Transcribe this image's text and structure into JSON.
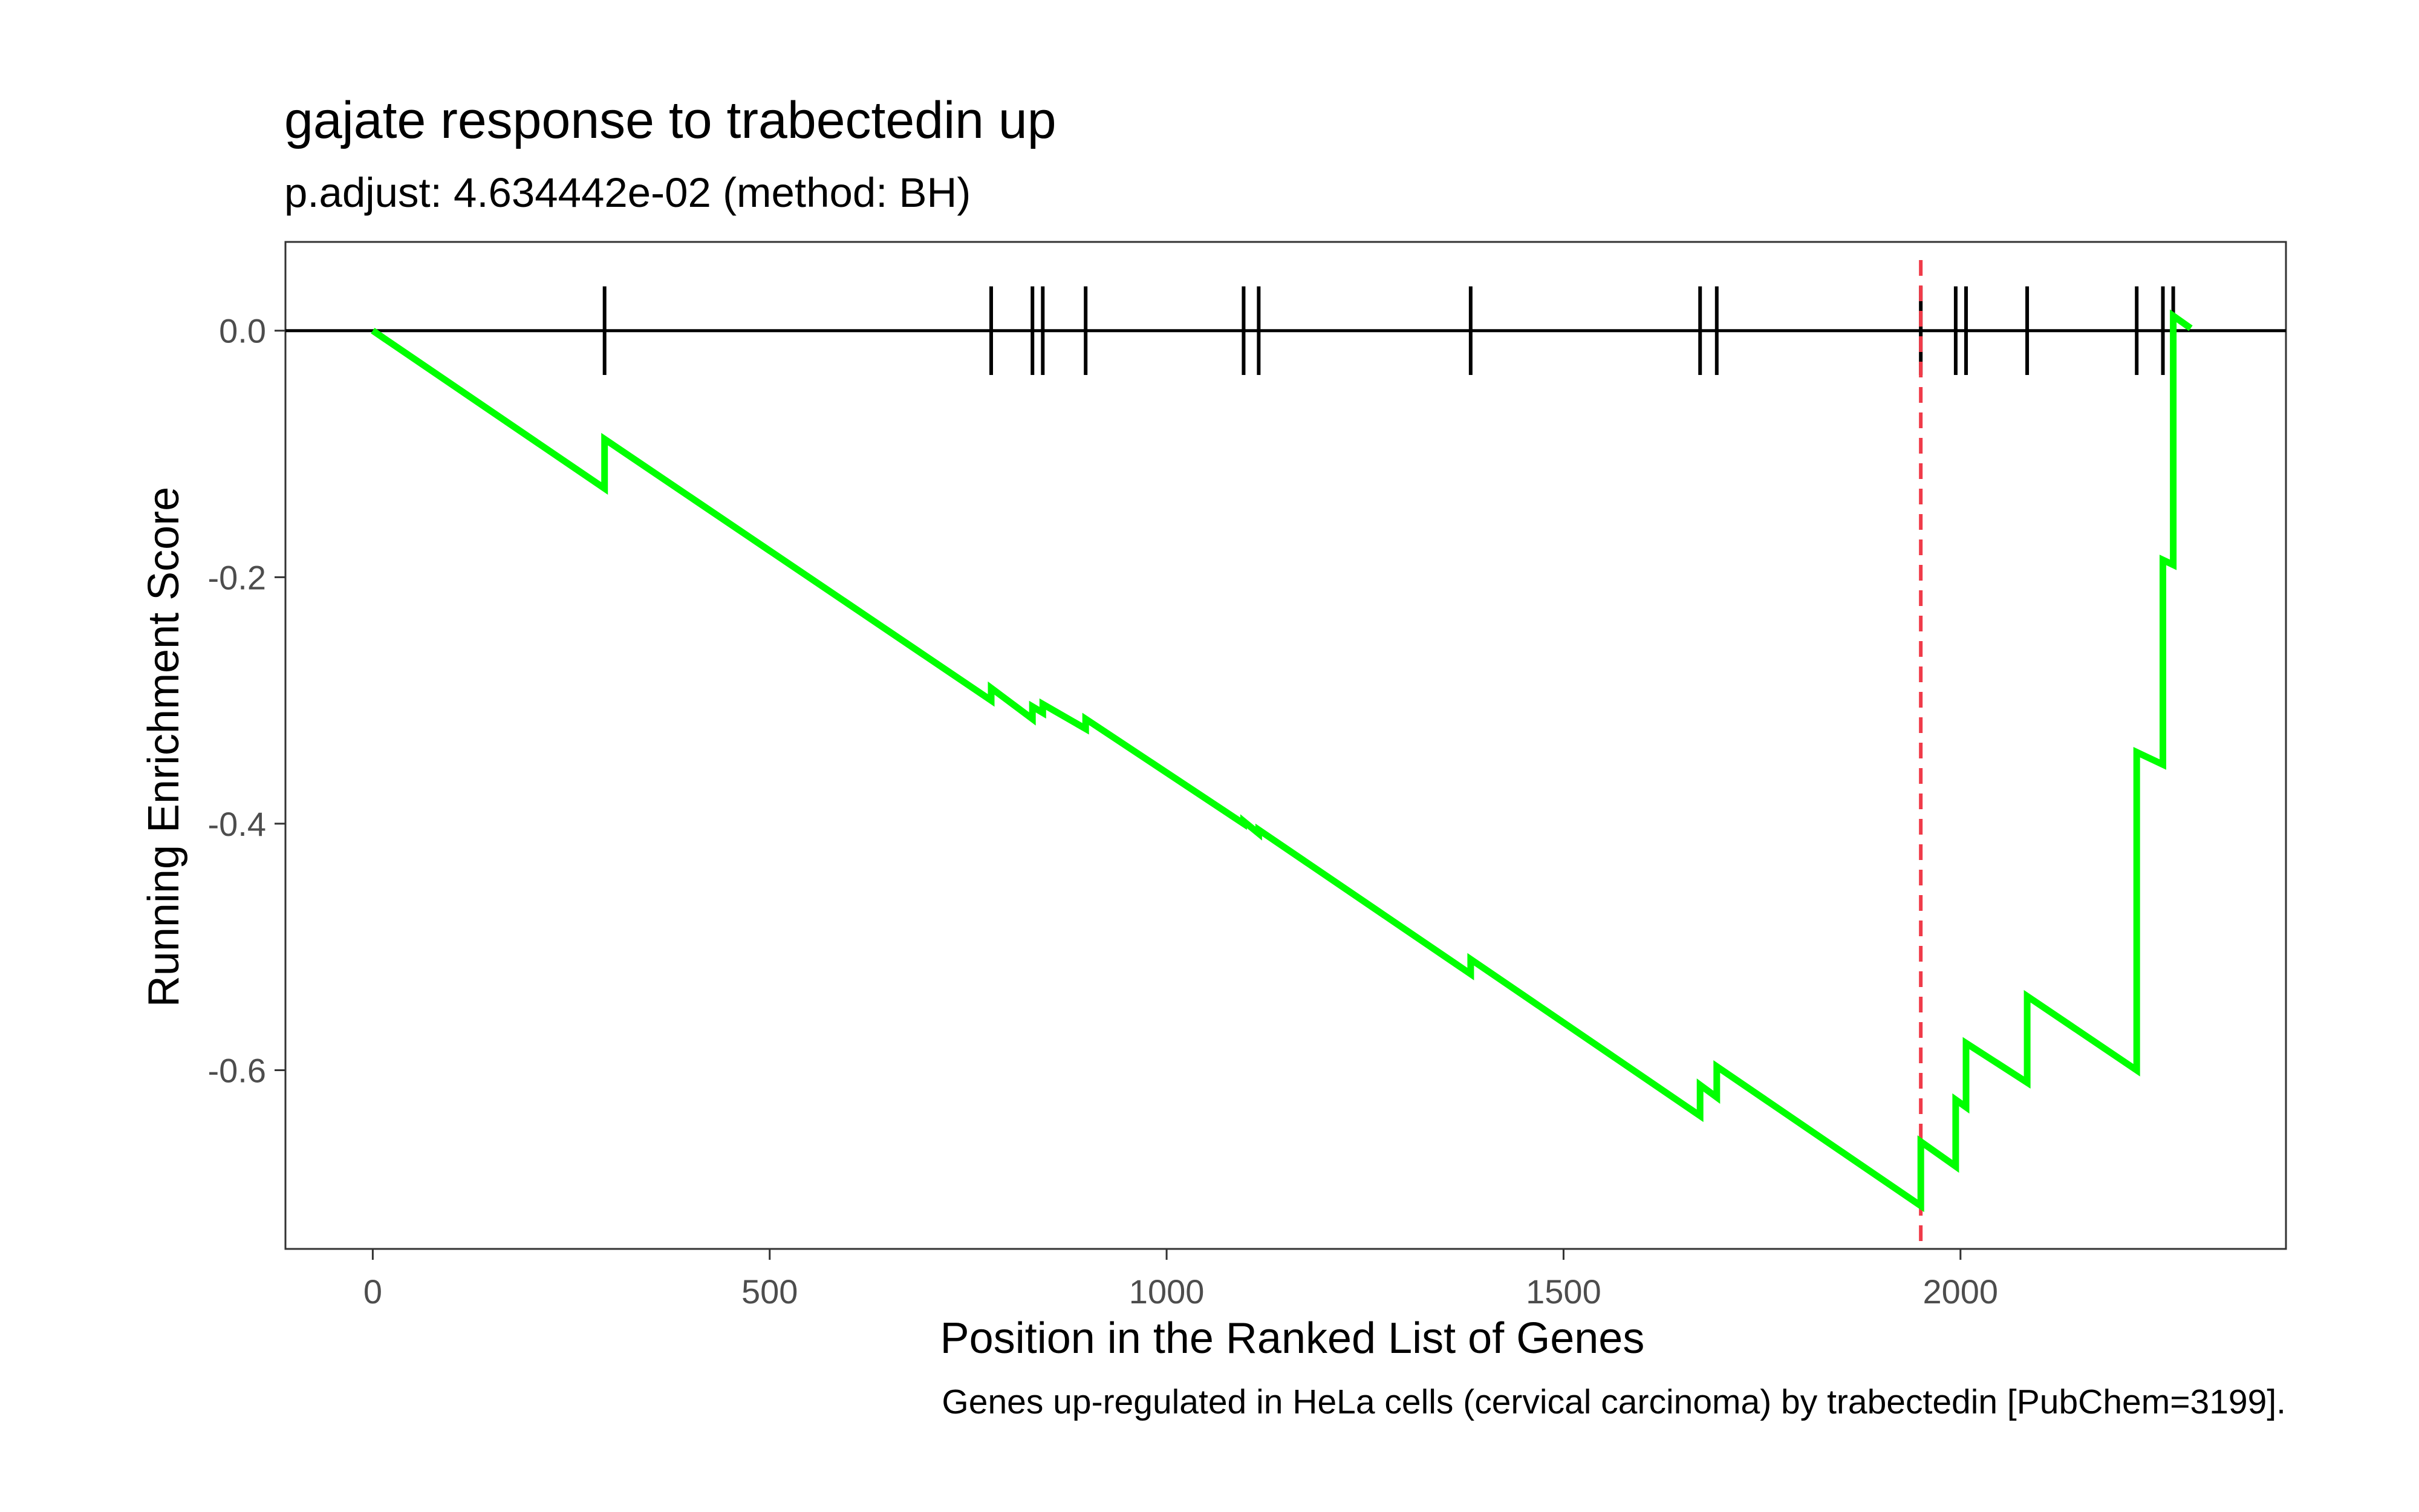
{
  "chart_data": {
    "type": "line",
    "title": "gajate response to trabectedin up",
    "subtitle": "p.adjust: 4.634442e-02 (method: BH)",
    "xlabel": "Position in the Ranked List of Genes",
    "ylabel": "Running Enrichment Score",
    "caption": "Genes up-regulated in HeLa cells (cervical carcinoma) by trabectedin [PubChem=3199].",
    "xlim": [
      -110,
      2410
    ],
    "ylim": [
      -0.745,
      0.072
    ],
    "x_ticks": [
      0,
      500,
      1000,
      1500,
      2000
    ],
    "x_tick_labels": [
      "0",
      "500",
      "1000",
      "1500",
      "2000"
    ],
    "y_ticks": [
      0.0,
      -0.2,
      -0.4,
      -0.6
    ],
    "y_tick_labels": [
      "0.0",
      "-0.2",
      "-0.4",
      "-0.6"
    ],
    "grid": false,
    "legend": "none",
    "reference_line_y": 0,
    "max_deviation_x": 1950,
    "series": [
      {
        "color": "#00ff00",
        "x": [
          0,
          292,
          292,
          779,
          779,
          831,
          831,
          844,
          844,
          898,
          898,
          1097,
          1097,
          1116,
          1116,
          1383,
          1383,
          1672,
          1672,
          1693,
          1693,
          1950,
          1950,
          1994,
          1994,
          2007,
          2007,
          2084,
          2084,
          2222,
          2222,
          2255,
          2255,
          2268,
          2268,
          2290
        ],
        "y": [
          0.0,
          -0.128,
          -0.088,
          -0.3,
          -0.29,
          -0.315,
          -0.305,
          -0.31,
          -0.303,
          -0.323,
          -0.315,
          -0.4,
          -0.398,
          -0.408,
          -0.405,
          -0.522,
          -0.51,
          -0.637,
          -0.612,
          -0.622,
          -0.597,
          -0.71,
          -0.658,
          -0.678,
          -0.624,
          -0.63,
          -0.578,
          -0.61,
          -0.54,
          -0.6,
          -0.342,
          -0.352,
          -0.186,
          -0.19,
          0.012,
          0.002
        ]
      }
    ],
    "gene_hits": [
      292,
      779,
      831,
      844,
      898,
      1097,
      1116,
      1383,
      1672,
      1693,
      1950,
      1994,
      2007,
      2084,
      2222,
      2255,
      2268
    ],
    "colors": {
      "curve": "#00ff00",
      "max_line": "#f03b49",
      "hits": "#000000",
      "frame": "#333333"
    }
  }
}
